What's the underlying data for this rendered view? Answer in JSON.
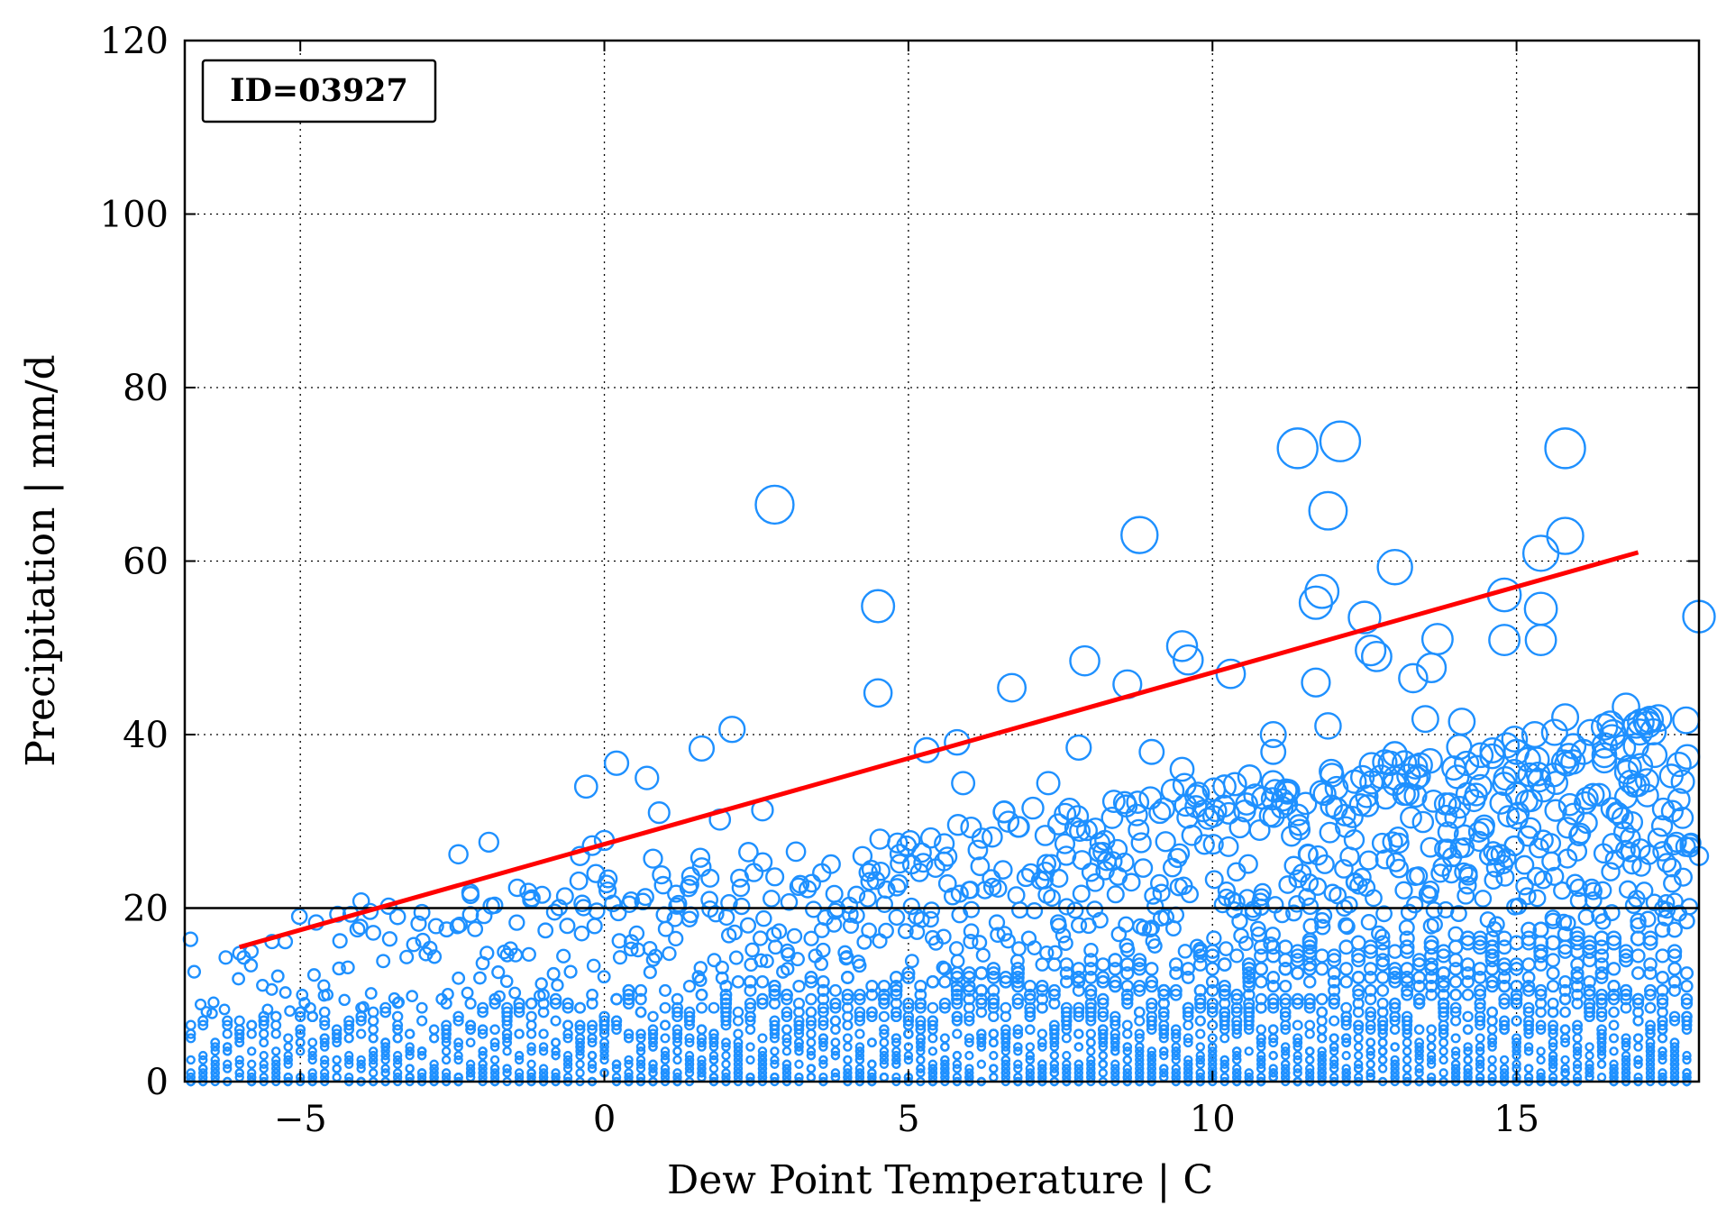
{
  "chart_data": {
    "type": "scatter",
    "title": "",
    "annotation": "ID=03927",
    "xlabel": "Dew Point Temperature | C",
    "ylabel": "Precipitation | mm/d",
    "xlim": [
      -6.9,
      18.0
    ],
    "ylim": [
      0,
      120
    ],
    "xticks": [
      -5,
      0,
      5,
      10,
      15
    ],
    "xtick_labels": [
      "−5",
      "0",
      "5",
      "10",
      "15"
    ],
    "yticks": [
      0,
      20,
      40,
      60,
      80,
      100,
      120
    ],
    "ytick_labels": [
      "0",
      "20",
      "40",
      "60",
      "80",
      "100",
      "120"
    ],
    "grid": true,
    "grid_style": "dotted",
    "threshold_line": {
      "y": 20,
      "color": "#000000"
    },
    "trend_line": {
      "color": "#ff0000",
      "points": [
        [
          -6.0,
          15.5
        ],
        [
          17.0,
          61.0
        ]
      ]
    },
    "marker_color": "#1e90ff",
    "highlighted_points": [
      [
        -6.0,
        14.8
      ],
      [
        -4.0,
        20.8
      ],
      [
        -3.4,
        19.0
      ],
      [
        -3.0,
        19.5
      ],
      [
        -2.4,
        26.2
      ],
      [
        -2.2,
        21.5
      ],
      [
        -1.9,
        27.6
      ],
      [
        -0.3,
        34.0
      ],
      [
        -0.2,
        27.2
      ],
      [
        0.0,
        27.8
      ],
      [
        -0.4,
        26.0
      ],
      [
        0.2,
        36.7
      ],
      [
        0.7,
        35.0
      ],
      [
        0.9,
        31.0
      ],
      [
        0.8,
        25.7
      ],
      [
        1.6,
        38.4
      ],
      [
        1.9,
        30.2
      ],
      [
        2.1,
        40.6
      ],
      [
        2.8,
        66.5
      ],
      [
        2.6,
        31.3
      ],
      [
        4.5,
        54.8
      ],
      [
        4.5,
        44.8
      ],
      [
        5.3,
        38.2
      ],
      [
        5.8,
        39.1
      ],
      [
        5.9,
        34.4
      ],
      [
        6.7,
        45.4
      ],
      [
        7.3,
        34.4
      ],
      [
        7.8,
        38.5
      ],
      [
        7.9,
        48.5
      ],
      [
        8.8,
        63.0
      ],
      [
        8.6,
        45.8
      ],
      [
        9.0,
        38.0
      ],
      [
        9.5,
        50.2
      ],
      [
        9.6,
        48.6
      ],
      [
        9.5,
        36.0
      ],
      [
        10.3,
        47.0
      ],
      [
        11.4,
        73.0
      ],
      [
        12.1,
        73.8
      ],
      [
        11.9,
        65.8
      ],
      [
        11.8,
        56.5
      ],
      [
        11.7,
        55.2
      ],
      [
        11.7,
        46.0
      ],
      [
        11.9,
        41.0
      ],
      [
        12.5,
        53.5
      ],
      [
        12.6,
        49.7
      ],
      [
        12.7,
        49.0
      ],
      [
        13.0,
        59.3
      ],
      [
        13.3,
        46.5
      ],
      [
        13.7,
        51.0
      ],
      [
        13.6,
        47.7
      ],
      [
        14.1,
        41.5
      ],
      [
        13.5,
        41.8
      ],
      [
        14.8,
        56.1
      ],
      [
        14.8,
        50.9
      ],
      [
        15.4,
        60.9
      ],
      [
        15.4,
        54.5
      ],
      [
        15.4,
        50.9
      ],
      [
        15.8,
        73.0
      ],
      [
        15.8,
        62.9
      ],
      [
        15.8,
        42.0
      ],
      [
        16.8,
        43.2
      ],
      [
        17.0,
        34.2
      ],
      [
        18.0,
        53.6
      ],
      [
        18.0,
        26.0
      ],
      [
        16.1,
        38.0
      ],
      [
        15.0,
        38.0
      ],
      [
        15.3,
        40.0
      ],
      [
        14.6,
        37.5
      ],
      [
        13.9,
        32.0
      ],
      [
        11.0,
        40.0
      ],
      [
        11.0,
        38.0
      ],
      [
        10.7,
        33.0
      ],
      [
        11.3,
        28.3
      ],
      [
        12.3,
        30.5
      ],
      [
        13.0,
        35.0
      ],
      [
        14.3,
        32.4
      ],
      [
        16.8,
        32.8
      ],
      [
        16.9,
        29.9
      ],
      [
        17.1,
        22.0
      ],
      [
        16.9,
        25.0
      ]
    ],
    "cloud_description_omitted": false
  }
}
